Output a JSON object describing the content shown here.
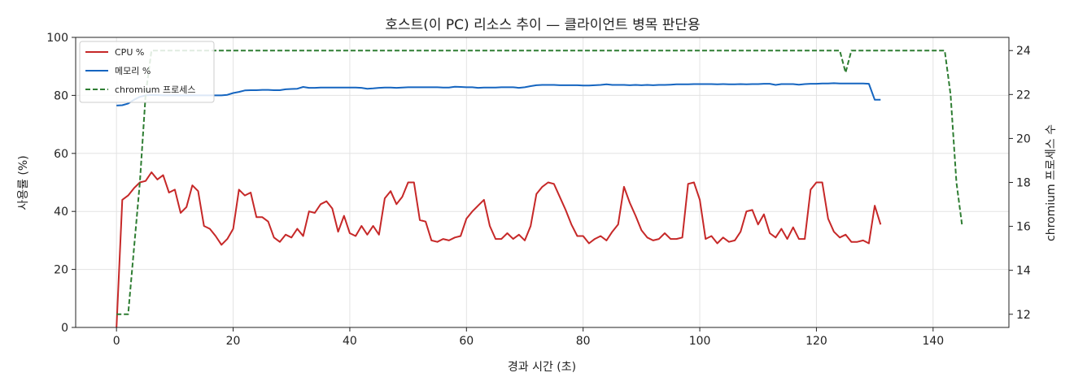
{
  "chart_data": {
    "type": "line",
    "title": "호스트(이 PC) 리소스 추이 — 클라이언트 병목 판단용",
    "xlabel": "경과 시간 (초)",
    "ylabel_left": "사용률 (%)",
    "ylabel_right": "chromium 프로세스 수",
    "xlim": [
      -7,
      153
    ],
    "ylim_left": [
      0,
      100
    ],
    "ylim_right": [
      11.4,
      24.6
    ],
    "xticks": [
      0,
      20,
      40,
      60,
      80,
      100,
      120,
      140
    ],
    "yticks_left": [
      0,
      20,
      40,
      60,
      80,
      100
    ],
    "yticks_right": [
      12,
      14,
      16,
      18,
      20,
      22,
      24
    ],
    "grid": true,
    "legend_position": "top-left",
    "series": [
      {
        "name": "CPU %",
        "axis": "left",
        "color": "#c62828",
        "style": "solid",
        "points": [
          [
            0,
            0
          ],
          [
            1,
            44
          ],
          [
            2,
            45.5
          ],
          [
            3,
            48
          ],
          [
            4,
            50
          ],
          [
            5,
            50.5
          ],
          [
            6,
            53.5
          ],
          [
            7,
            51
          ],
          [
            8,
            52.5
          ],
          [
            9,
            46.5
          ],
          [
            10,
            47.5
          ],
          [
            11,
            39.5
          ],
          [
            12,
            41.5
          ],
          [
            13,
            49
          ],
          [
            14,
            47
          ],
          [
            15,
            35
          ],
          [
            16,
            34
          ],
          [
            17,
            31.5
          ],
          [
            18,
            28.5
          ],
          [
            19,
            30.5
          ],
          [
            20,
            34
          ],
          [
            21,
            47.5
          ],
          [
            22,
            45.5
          ],
          [
            23,
            46.5
          ],
          [
            24,
            38
          ],
          [
            25,
            38
          ],
          [
            26,
            36.5
          ],
          [
            27,
            31
          ],
          [
            28,
            29.5
          ],
          [
            29,
            32
          ],
          [
            30,
            31
          ],
          [
            31,
            34
          ],
          [
            32,
            31.5
          ],
          [
            33,
            40
          ],
          [
            34,
            39.5
          ],
          [
            35,
            42.5
          ],
          [
            36,
            43.5
          ],
          [
            37,
            41
          ],
          [
            38,
            33
          ],
          [
            39,
            38.5
          ],
          [
            40,
            32.5
          ],
          [
            41,
            31.5
          ],
          [
            42,
            35
          ],
          [
            43,
            32
          ],
          [
            44,
            35
          ],
          [
            45,
            32
          ],
          [
            46,
            44.5
          ],
          [
            47,
            47
          ],
          [
            48,
            42.5
          ],
          [
            49,
            45
          ],
          [
            50,
            50
          ],
          [
            51,
            50
          ],
          [
            52,
            37
          ],
          [
            53,
            36.5
          ],
          [
            54,
            30
          ],
          [
            55,
            29.5
          ],
          [
            56,
            30.5
          ],
          [
            57,
            30
          ],
          [
            58,
            31
          ],
          [
            59,
            31.5
          ],
          [
            60,
            37.5
          ],
          [
            61,
            40
          ],
          [
            62,
            42
          ],
          [
            63,
            44
          ],
          [
            64,
            35
          ],
          [
            65,
            30.5
          ],
          [
            66,
            30.5
          ],
          [
            67,
            32.5
          ],
          [
            68,
            30.5
          ],
          [
            69,
            32
          ],
          [
            70,
            30
          ],
          [
            71,
            35
          ],
          [
            72,
            46
          ],
          [
            73,
            48.5
          ],
          [
            74,
            50
          ],
          [
            75,
            49.5
          ],
          [
            76,
            45
          ],
          [
            77,
            40.5
          ],
          [
            78,
            35.5
          ],
          [
            79,
            31.5
          ],
          [
            80,
            31.5
          ],
          [
            81,
            29
          ],
          [
            82,
            30.5
          ],
          [
            83,
            31.5
          ],
          [
            84,
            30
          ],
          [
            85,
            33
          ],
          [
            86,
            35.5
          ],
          [
            87,
            48.5
          ],
          [
            88,
            43
          ],
          [
            89,
            38.5
          ],
          [
            90,
            33.5
          ],
          [
            91,
            31
          ],
          [
            92,
            30
          ],
          [
            93,
            30.5
          ],
          [
            94,
            32.5
          ],
          [
            95,
            30.5
          ],
          [
            96,
            30.5
          ],
          [
            97,
            31
          ],
          [
            98,
            49.5
          ],
          [
            99,
            50
          ],
          [
            100,
            44
          ],
          [
            101,
            30.5
          ],
          [
            102,
            31.5
          ],
          [
            103,
            29
          ],
          [
            104,
            31
          ],
          [
            105,
            29.5
          ],
          [
            106,
            30
          ],
          [
            107,
            33
          ],
          [
            108,
            40
          ],
          [
            109,
            40.5
          ],
          [
            110,
            35.5
          ],
          [
            111,
            39
          ],
          [
            112,
            32.5
          ],
          [
            113,
            31
          ],
          [
            114,
            34
          ],
          [
            115,
            30.5
          ],
          [
            116,
            34.5
          ],
          [
            117,
            30.5
          ],
          [
            118,
            30.5
          ],
          [
            119,
            47.5
          ],
          [
            120,
            50
          ],
          [
            121,
            50
          ],
          [
            122,
            37.5
          ],
          [
            123,
            33
          ],
          [
            124,
            31
          ],
          [
            125,
            32
          ],
          [
            126,
            29.5
          ],
          [
            127,
            29.5
          ],
          [
            128,
            30
          ],
          [
            129,
            29
          ],
          [
            130,
            42
          ],
          [
            131,
            35.5
          ]
        ]
      },
      {
        "name": "메모리 %",
        "axis": "left",
        "color": "#1565c0",
        "style": "solid",
        "points": [
          [
            0,
            76.5
          ],
          [
            1,
            76.6
          ],
          [
            2,
            77.2
          ],
          [
            3,
            78.5
          ],
          [
            4,
            79.5
          ],
          [
            5,
            80.0
          ],
          [
            6,
            80.1
          ],
          [
            7,
            80.1
          ],
          [
            8,
            80.0
          ],
          [
            9,
            80.0
          ],
          [
            10,
            80.0
          ],
          [
            11,
            80.0
          ],
          [
            12,
            80.0
          ],
          [
            13,
            80.0
          ],
          [
            14,
            80.0
          ],
          [
            15,
            80.0
          ],
          [
            16,
            80.0
          ],
          [
            17,
            80.0
          ],
          [
            18,
            80.0
          ],
          [
            19,
            80.2
          ],
          [
            20,
            80.8
          ],
          [
            21,
            81.2
          ],
          [
            22,
            81.7
          ],
          [
            23,
            81.8
          ],
          [
            24,
            81.8
          ],
          [
            25,
            81.9
          ],
          [
            26,
            81.9
          ],
          [
            27,
            81.8
          ],
          [
            28,
            81.8
          ],
          [
            29,
            82.1
          ],
          [
            30,
            82.2
          ],
          [
            31,
            82.3
          ],
          [
            32,
            82.9
          ],
          [
            33,
            82.6
          ],
          [
            34,
            82.6
          ],
          [
            35,
            82.7
          ],
          [
            36,
            82.7
          ],
          [
            37,
            82.7
          ],
          [
            38,
            82.7
          ],
          [
            39,
            82.7
          ],
          [
            40,
            82.7
          ],
          [
            41,
            82.7
          ],
          [
            42,
            82.6
          ],
          [
            43,
            82.3
          ],
          [
            44,
            82.4
          ],
          [
            45,
            82.6
          ],
          [
            46,
            82.7
          ],
          [
            47,
            82.7
          ],
          [
            48,
            82.6
          ],
          [
            49,
            82.7
          ],
          [
            50,
            82.8
          ],
          [
            51,
            82.8
          ],
          [
            52,
            82.8
          ],
          [
            53,
            82.8
          ],
          [
            54,
            82.8
          ],
          [
            55,
            82.8
          ],
          [
            56,
            82.7
          ],
          [
            57,
            82.7
          ],
          [
            58,
            83.0
          ],
          [
            59,
            82.9
          ],
          [
            60,
            82.8
          ],
          [
            61,
            82.8
          ],
          [
            62,
            82.6
          ],
          [
            63,
            82.7
          ],
          [
            64,
            82.7
          ],
          [
            65,
            82.7
          ],
          [
            66,
            82.8
          ],
          [
            67,
            82.8
          ],
          [
            68,
            82.8
          ],
          [
            69,
            82.6
          ],
          [
            70,
            82.8
          ],
          [
            71,
            83.2
          ],
          [
            72,
            83.5
          ],
          [
            73,
            83.6
          ],
          [
            74,
            83.6
          ],
          [
            75,
            83.6
          ],
          [
            76,
            83.5
          ],
          [
            77,
            83.5
          ],
          [
            78,
            83.5
          ],
          [
            79,
            83.5
          ],
          [
            80,
            83.4
          ],
          [
            81,
            83.4
          ],
          [
            82,
            83.5
          ],
          [
            83,
            83.6
          ],
          [
            84,
            83.8
          ],
          [
            85,
            83.6
          ],
          [
            86,
            83.6
          ],
          [
            87,
            83.6
          ],
          [
            88,
            83.5
          ],
          [
            89,
            83.6
          ],
          [
            90,
            83.5
          ],
          [
            91,
            83.6
          ],
          [
            92,
            83.5
          ],
          [
            93,
            83.6
          ],
          [
            94,
            83.6
          ],
          [
            95,
            83.7
          ],
          [
            96,
            83.8
          ],
          [
            97,
            83.8
          ],
          [
            98,
            83.8
          ],
          [
            99,
            83.9
          ],
          [
            100,
            83.9
          ],
          [
            101,
            83.9
          ],
          [
            102,
            83.9
          ],
          [
            103,
            83.8
          ],
          [
            104,
            83.9
          ],
          [
            105,
            83.8
          ],
          [
            106,
            83.8
          ],
          [
            107,
            83.9
          ],
          [
            108,
            83.8
          ],
          [
            109,
            83.9
          ],
          [
            110,
            83.9
          ],
          [
            111,
            84.0
          ],
          [
            112,
            84.0
          ],
          [
            113,
            83.6
          ],
          [
            114,
            83.9
          ],
          [
            115,
            83.9
          ],
          [
            116,
            83.9
          ],
          [
            117,
            83.7
          ],
          [
            118,
            83.9
          ],
          [
            119,
            84.0
          ],
          [
            120,
            84.0
          ],
          [
            121,
            84.1
          ],
          [
            122,
            84.1
          ],
          [
            123,
            84.2
          ],
          [
            124,
            84.1
          ],
          [
            125,
            84.1
          ],
          [
            126,
            84.1
          ],
          [
            127,
            84.1
          ],
          [
            128,
            84.1
          ],
          [
            129,
            84.0
          ],
          [
            130,
            78.5
          ],
          [
            131,
            78.5
          ]
        ]
      },
      {
        "name": "chromium 프로세스",
        "axis": "right",
        "color": "#2e7d32",
        "style": "dashed",
        "points": [
          [
            0,
            12
          ],
          [
            2,
            12
          ],
          [
            3,
            15
          ],
          [
            4,
            18
          ],
          [
            5,
            22
          ],
          [
            6,
            24
          ],
          [
            124,
            24
          ],
          [
            125,
            23
          ],
          [
            126,
            24
          ],
          [
            142,
            24
          ],
          [
            143,
            22
          ],
          [
            144,
            18
          ],
          [
            145,
            16
          ]
        ]
      }
    ]
  }
}
